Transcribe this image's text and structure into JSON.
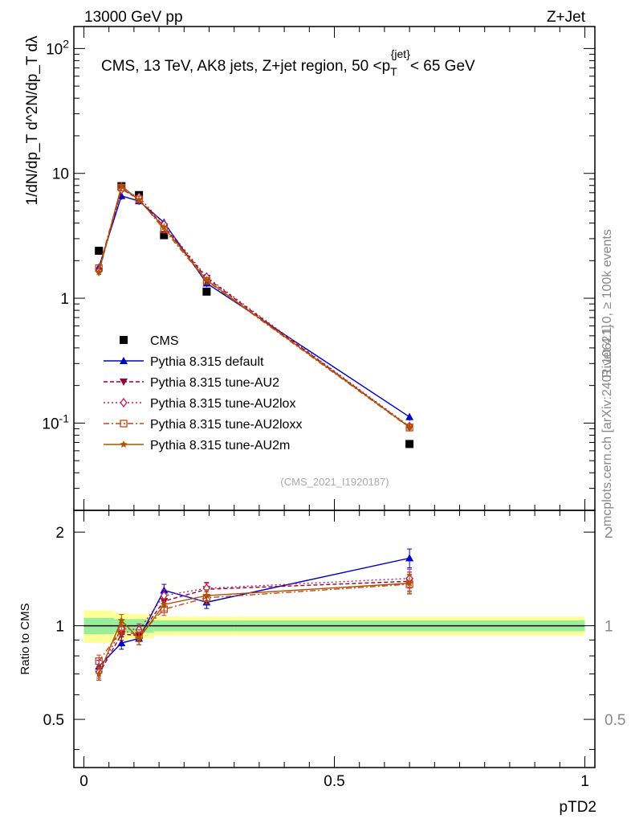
{
  "header": {
    "left": "13000 GeV pp",
    "right": "Z+Jet"
  },
  "chart_data": {
    "type": "scatter",
    "title": "CMS, 13 TeV, AK8 jets, Z+jet region, 50 <p_T^{jet}< 65 GeV",
    "title_parts": {
      "pre": "CMS, 13 TeV, AK8 jets, Z+jet region, 50 <p",
      "sub": "T",
      "sup": "{jet}",
      "post": "< 65 GeV"
    },
    "xlabel": "pTD2",
    "ylabel_top": "1/dN/dp_T d^2N/dp_T dλ",
    "ylabel_bottom": "Ratio to CMS",
    "xlim": [
      0,
      1
    ],
    "ylim_top": [
      0.02,
      150
    ],
    "ylim_bottom": [
      0.35,
      2.35
    ],
    "x_ticks": [
      "0",
      "0.5",
      "1"
    ],
    "y_ticks_top": [
      "10^{-1}",
      "1",
      "10",
      "10^{2}"
    ],
    "y_ticks_bottom": [
      "0.5",
      "1",
      "2"
    ],
    "x_bins": [
      [
        0.0,
        0.06
      ],
      [
        0.06,
        0.09
      ],
      [
        0.09,
        0.14
      ],
      [
        0.14,
        0.19
      ],
      [
        0.19,
        0.3
      ],
      [
        0.3,
        1.0
      ]
    ],
    "x": [
      0.03,
      0.075,
      0.11,
      0.16,
      0.245,
      0.65
    ],
    "data": {
      "name": "CMS",
      "values": [
        2.4,
        7.9,
        6.7,
        3.2,
        1.13,
        0.068
      ],
      "band_inner": [
        0.06,
        0.05,
        0.05,
        0.04,
        0.04,
        0.04
      ],
      "band_outer": [
        0.12,
        0.1,
        0.09,
        0.07,
        0.07,
        0.07
      ]
    },
    "series": [
      {
        "name": "Pythia 8.315 default",
        "color": "#0000cc",
        "style": "solid",
        "marker": "triangle-up",
        "values": [
          1.77,
          6.6,
          6.0,
          4.05,
          1.32,
          0.112
        ],
        "ratio": [
          0.74,
          0.88,
          0.91,
          1.3,
          1.19,
          1.65
        ]
      },
      {
        "name": "Pythia 8.315 tune-AU2",
        "color": "#990033",
        "style": "dashed",
        "marker": "triangle-down",
        "values": [
          1.62,
          7.5,
          6.2,
          3.75,
          1.45,
          0.093
        ],
        "ratio": [
          0.7,
          0.94,
          0.93,
          1.2,
          1.31,
          1.39
        ]
      },
      {
        "name": "Pythia 8.315 tune-AU2lox",
        "color": "#bb2255",
        "style": "dotted",
        "marker": "diamond-open",
        "values": [
          1.65,
          7.4,
          6.45,
          3.9,
          1.48,
          0.094
        ],
        "ratio": [
          0.71,
          0.98,
          0.97,
          1.25,
          1.32,
          1.42
        ]
      },
      {
        "name": "Pythia 8.315 tune-AU2loxx",
        "color": "#cc4411",
        "style": "dashdot",
        "marker": "square-open",
        "values": [
          1.74,
          7.7,
          6.2,
          3.55,
          1.38,
          0.092
        ],
        "ratio": [
          0.77,
          0.97,
          0.93,
          1.13,
          1.23,
          1.36
        ]
      },
      {
        "name": "Pythia 8.315 tune-AU2m",
        "color": "#aa5500",
        "style": "solid",
        "marker": "star",
        "values": [
          1.62,
          7.95,
          6.1,
          3.7,
          1.4,
          0.093
        ],
        "ratio": [
          0.7,
          1.04,
          0.91,
          1.17,
          1.25,
          1.37
        ]
      }
    ],
    "legend_data_label": "CMS",
    "legend_position": "middle-left",
    "reference": "(CMS_2021_I1920187)",
    "side_label_top": "Rivet 4.1.0, ≥ 100k events",
    "side_label_bottom": "mcplots.cern.ch [arXiv:2401.10621]"
  }
}
